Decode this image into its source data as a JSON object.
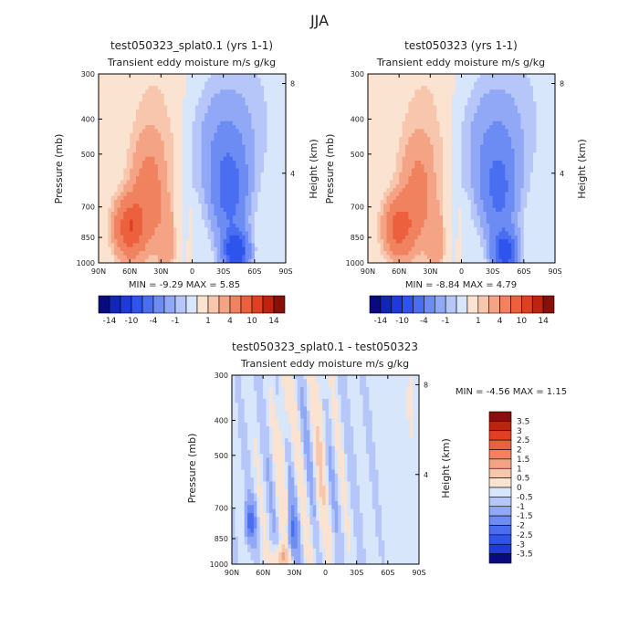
{
  "page": {
    "title": "JJA"
  },
  "colors": {
    "frame": "#000000",
    "neg": [
      "#0a0a80",
      "#1226b6",
      "#1e3ad8",
      "#2e54ec",
      "#4a6ef2",
      "#6c8cf4",
      "#90a8f6",
      "#b6c6f8",
      "#d8e6fc"
    ],
    "pos": [
      "#fbe3d2",
      "#f8c6ac",
      "#f4a484",
      "#f08260",
      "#ec603e",
      "#e04022",
      "#bc2410",
      "#8a0f0a"
    ]
  },
  "panels": [
    {
      "name": "top-left-panel",
      "title": "test050323_splat0.1 (yrs 1-1)",
      "subtitle": "Transient eddy moisture m/s g/kg",
      "ylabel": "Pressure (mb)",
      "ylabel_right": "Height (km)",
      "stats": "MIN =   -9.29    MAX =     5.85"
    },
    {
      "name": "top-right-panel",
      "title": "test050323 (yrs 1-1)",
      "subtitle": "Transient eddy moisture m/s g/kg",
      "ylabel": "Pressure (mb)",
      "ylabel_right": "Height (km)",
      "stats": "MIN =   -8.84    MAX =     4.79"
    },
    {
      "name": "bottom-diff-panel",
      "title": "test050323_splat0.1 - test050323",
      "subtitle": "Transient eddy moisture m/s g/kg",
      "ylabel": "Pressure (mb)",
      "ylabel_right": "Height (km)",
      "stats": "MIN =   -4.56    MAX =     1.15"
    }
  ],
  "colorbar_top": {
    "labels": [
      "-14",
      "-10",
      "-4",
      "-1",
      "1",
      "4",
      "10",
      "14"
    ]
  },
  "colorbar_diff": {
    "labels": [
      "3.5",
      "3",
      "2.5",
      "2",
      "1.5",
      "1",
      "0.5",
      "0",
      "-0.5",
      "-1",
      "-1.5",
      "-2",
      "-2.5",
      "-3",
      "-3.5"
    ]
  },
  "chart_data": [
    {
      "type": "heatmap",
      "title": "test050323_splat0.1 (yrs 1-1)",
      "subtitle": "Transient eddy moisture m/s g/kg",
      "xlabel": "",
      "ylabel": "Pressure (mb)",
      "ylabel_right": "Height (km)",
      "x_ticks": [
        "90N",
        "60N",
        "30N",
        "0",
        "30S",
        "60S",
        "90S"
      ],
      "y_ticks": [
        "300",
        "400",
        "500",
        "700",
        "850",
        "1000"
      ],
      "y_ticks_right": [
        "8",
        "4"
      ],
      "ylim": [
        1000,
        300
      ],
      "y_scale": "log",
      "min": -9.29,
      "max": 5.85,
      "features": [
        {
          "lat": 60,
          "p": 780,
          "value": 5.5
        },
        {
          "lat": 45,
          "p": 650,
          "value": 3.0
        },
        {
          "lat": -40,
          "p": 900,
          "value": -9.0
        },
        {
          "lat": -35,
          "p": 600,
          "value": -3.5
        }
      ]
    },
    {
      "type": "heatmap",
      "title": "test050323 (yrs 1-1)",
      "subtitle": "Transient eddy moisture m/s g/kg",
      "xlabel": "",
      "ylabel": "Pressure (mb)",
      "ylabel_right": "Height (km)",
      "x_ticks": [
        "90N",
        "60N",
        "30N",
        "0",
        "30S",
        "60S",
        "90S"
      ],
      "y_ticks": [
        "300",
        "400",
        "500",
        "700",
        "850",
        "1000"
      ],
      "y_ticks_right": [
        "8",
        "4"
      ],
      "ylim": [
        1000,
        300
      ],
      "y_scale": "log",
      "min": -8.84,
      "max": 4.79,
      "features": [
        {
          "lat": 60,
          "p": 780,
          "value": 4.5
        },
        {
          "lat": 45,
          "p": 650,
          "value": 2.5
        },
        {
          "lat": -40,
          "p": 900,
          "value": -8.5
        },
        {
          "lat": -35,
          "p": 600,
          "value": -3.0
        }
      ]
    },
    {
      "type": "heatmap",
      "title": "test050323_splat0.1 - test050323",
      "subtitle": "Transient eddy moisture m/s g/kg",
      "xlabel": "",
      "ylabel": "Pressure (mb)",
      "ylabel_right": "Height (km)",
      "x_ticks": [
        "90N",
        "60N",
        "30N",
        "0",
        "30S",
        "60S",
        "90S"
      ],
      "y_ticks": [
        "300",
        "400",
        "500",
        "700",
        "850",
        "1000"
      ],
      "y_ticks_right": [
        "8",
        "4"
      ],
      "ylim": [
        1000,
        300
      ],
      "y_scale": "log",
      "min": -4.56,
      "max": 1.15,
      "features": [
        {
          "lat": 70,
          "p": 750,
          "value": -1.5
        },
        {
          "lat": 40,
          "p": 950,
          "value": 1.0
        },
        {
          "lat": 5,
          "p": 500,
          "value": 0.3
        }
      ]
    }
  ]
}
